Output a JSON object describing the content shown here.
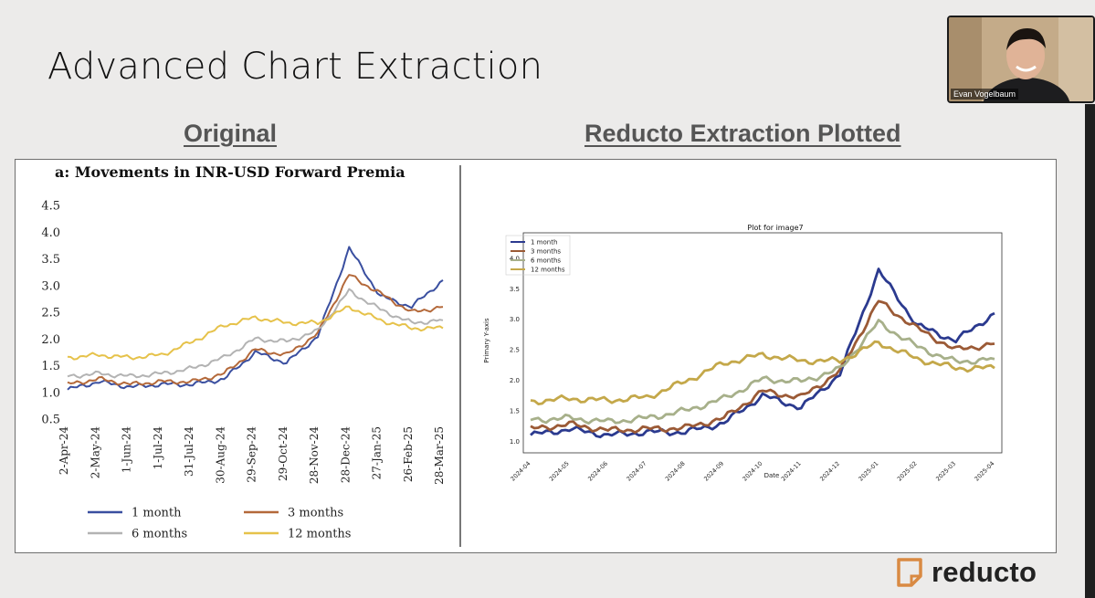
{
  "slide": {
    "title": "Advanced Chart Extraction"
  },
  "headings": {
    "original": "Original",
    "reducto": "Reducto Extraction Plotted"
  },
  "video": {
    "participant_name": "Evan Vogelbaum"
  },
  "brand": {
    "logo_text": "reducto"
  },
  "colors": {
    "one_month": "#3a4fa0",
    "three_months": "#b4693a",
    "six_months": "#b3b3b3",
    "twelve_months": "#e6c24a",
    "r_one_month": "#2b3a8f",
    "r_three_months": "#9b5a36",
    "r_six_months": "#a7b08a",
    "r_twelve_months": "#c4a84a",
    "logo_orange": "#d98a43"
  },
  "chart_data": [
    {
      "type": "line",
      "title": "a: Movements in INR-USD Forward Premia",
      "xlabel": "",
      "ylabel": "",
      "ylim": [
        0.5,
        4.5
      ],
      "yticks": [
        "0.5",
        "1.0",
        "1.5",
        "2.0",
        "2.5",
        "3.0",
        "3.5",
        "4.0",
        "4.5"
      ],
      "categories": [
        "2-Apr-24",
        "2-May-24",
        "1-Jun-24",
        "1-Jul-24",
        "31-Jul-24",
        "30-Aug-24",
        "29-Sep-24",
        "29-Oct-24",
        "28-Nov-24",
        "28-Dec-24",
        "27-Jan-25",
        "26-Feb-25",
        "28-Mar-25"
      ],
      "legend": [
        "1 month",
        "3 months",
        "6 months",
        "12 months"
      ],
      "series": [
        {
          "name": "1 month",
          "values": [
            1.05,
            1.2,
            1.1,
            1.15,
            1.15,
            1.25,
            1.75,
            1.55,
            2.05,
            3.7,
            2.8,
            2.6,
            3.1
          ]
        },
        {
          "name": "3 months",
          "values": [
            1.15,
            1.25,
            1.15,
            1.2,
            1.2,
            1.35,
            1.8,
            1.7,
            2.1,
            3.2,
            2.85,
            2.5,
            2.6
          ]
        },
        {
          "name": "6 months",
          "values": [
            1.3,
            1.35,
            1.3,
            1.35,
            1.45,
            1.65,
            2.0,
            1.95,
            2.15,
            2.9,
            2.55,
            2.3,
            2.35
          ]
        },
        {
          "name": "12 months",
          "values": [
            1.65,
            1.7,
            1.65,
            1.7,
            1.95,
            2.25,
            2.4,
            2.3,
            2.3,
            2.6,
            2.35,
            2.2,
            2.2
          ]
        }
      ]
    },
    {
      "type": "line",
      "title": "Plot for image7",
      "xlabel": "Date",
      "ylabel": "Primary Y-axis",
      "ylim": [
        0.9,
        4.3
      ],
      "yticks": [
        "1.0",
        "1.5",
        "2.0",
        "2.5",
        "3.0",
        "3.5",
        "4.0"
      ],
      "categories": [
        "2024-04",
        "2024-05",
        "2024-06",
        "2024-07",
        "2024-08",
        "2024-09",
        "2024-10",
        "2024-11",
        "2024-12",
        "2025-01",
        "2025-02",
        "2025-03",
        "2025-04"
      ],
      "legend": [
        "1 month",
        "3 months",
        "6 months",
        "12 months"
      ],
      "series": [
        {
          "name": "1 month",
          "values": [
            1.1,
            1.2,
            1.1,
            1.15,
            1.15,
            1.3,
            1.75,
            1.55,
            2.1,
            3.8,
            2.9,
            2.65,
            3.1
          ]
        },
        {
          "name": "3 months",
          "values": [
            1.2,
            1.28,
            1.18,
            1.2,
            1.22,
            1.38,
            1.82,
            1.72,
            2.15,
            3.3,
            2.85,
            2.5,
            2.6
          ]
        },
        {
          "name": "6 months",
          "values": [
            1.35,
            1.38,
            1.32,
            1.38,
            1.5,
            1.7,
            2.02,
            1.98,
            2.18,
            2.95,
            2.55,
            2.3,
            2.35
          ]
        },
        {
          "name": "12 months",
          "values": [
            1.65,
            1.7,
            1.67,
            1.72,
            1.98,
            2.28,
            2.42,
            2.32,
            2.32,
            2.62,
            2.35,
            2.2,
            2.2
          ]
        }
      ]
    }
  ]
}
